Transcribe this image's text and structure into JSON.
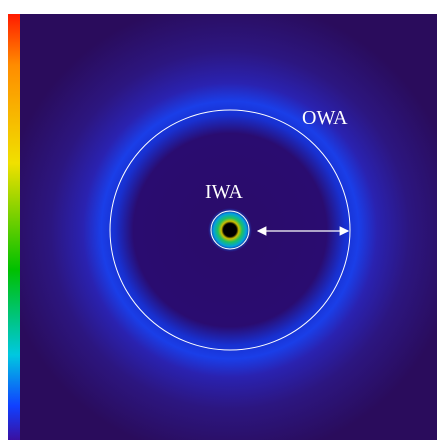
{
  "labels": {
    "owa": "OWA",
    "iwa": "IWA"
  }
}
